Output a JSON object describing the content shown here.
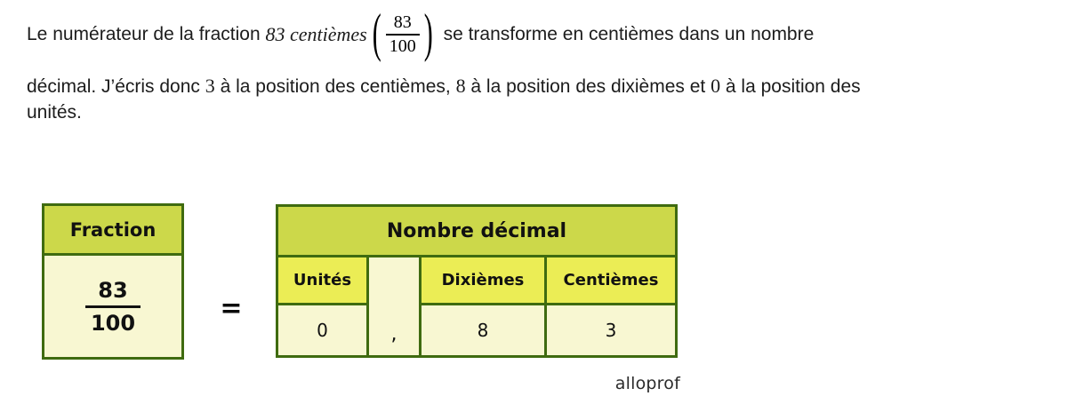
{
  "paragraph": {
    "line1": {
      "seg1": "Le numérateur de la fraction ",
      "italic": "83 centièmes",
      "fraction": {
        "open_paren": "(",
        "numerator": "83",
        "denominator": "100",
        "close_paren": ")"
      },
      "seg2": " se transforme en centièmes dans un nombre"
    },
    "line2": {
      "seg1": "décimal. J’écris donc ",
      "num1": "3",
      "seg2": " à la position des centièmes, ",
      "num2": "8",
      "seg3": " à la position des dixièmes et ",
      "num3": "0",
      "seg4": " à la position des"
    },
    "line3": {
      "seg1": "unités."
    }
  },
  "figure": {
    "fraction_table": {
      "header": "Fraction",
      "numerator": "83",
      "denominator": "100"
    },
    "equals": "=",
    "decimal_table": {
      "header": "Nombre décimal",
      "columns": [
        {
          "label": "Unités",
          "value": "0"
        },
        {
          "label": "",
          "value": ","
        },
        {
          "label": "Dixièmes",
          "value": "8"
        },
        {
          "label": "Centièmes",
          "value": "3"
        }
      ]
    },
    "brand": "alloprof"
  },
  "colors": {
    "olive": "#ccd84a",
    "yellow": "#ebed55",
    "cream": "#f8f7d2",
    "bordergreen": "#3f6b10",
    "ink": "#1c1c1c",
    "brandgray": "#2b2b2b"
  }
}
